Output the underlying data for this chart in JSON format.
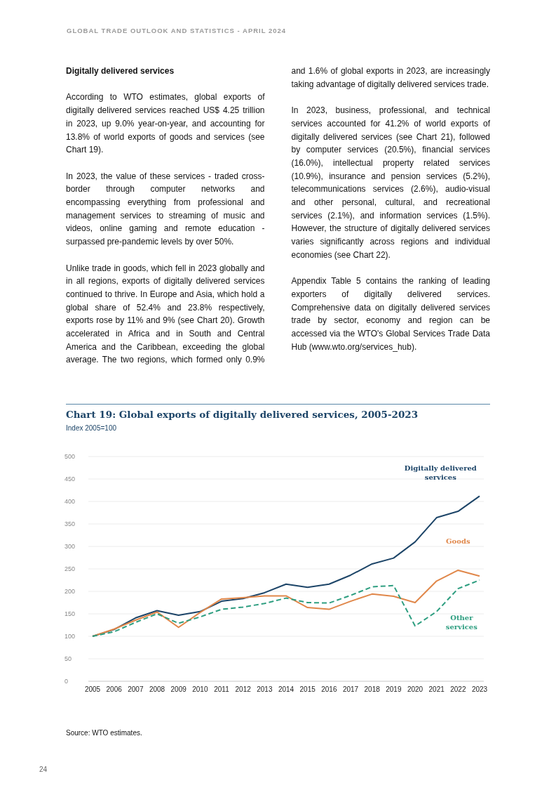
{
  "chart_data": {
    "type": "line",
    "title": "Chart 19: Global exports of digitally delivered services, 2005-2023",
    "subtitle": "Index 2005=100",
    "categories": [
      "2005",
      "2006",
      "2007",
      "2008",
      "2009",
      "2010",
      "2011",
      "2012",
      "2013",
      "2014",
      "2015",
      "2016",
      "2017",
      "2018",
      "2019",
      "2020",
      "2021",
      "2022",
      "2023"
    ],
    "series": [
      {
        "name": "Digitally delivered services",
        "color": "#1d4568",
        "line_style": "solid",
        "values": [
          100,
          115,
          141,
          157,
          147,
          155,
          178,
          184,
          197,
          216,
          209,
          216,
          236,
          261,
          274,
          310,
          364,
          378,
          412
        ]
      },
      {
        "name": "Goods",
        "color": "#e0874a",
        "line_style": "solid",
        "values": [
          100,
          116,
          136,
          154,
          120,
          153,
          183,
          186,
          190,
          190,
          164,
          160,
          178,
          194,
          189,
          175,
          223,
          247,
          234
        ]
      },
      {
        "name": "Other services",
        "color": "#2e9e80",
        "line_style": "dashed",
        "values": [
          100,
          110,
          131,
          150,
          129,
          143,
          160,
          165,
          173,
          185,
          175,
          174,
          191,
          210,
          213,
          123,
          155,
          206,
          225
        ]
      }
    ],
    "ylim": [
      0,
      500
    ],
    "yticks": [
      0,
      50,
      100,
      150,
      200,
      250,
      300,
      350,
      400,
      450,
      500
    ],
    "grid": "y",
    "marker": "none",
    "annotations": [
      "GLOBAL TRADE OUTLOOK AND STATISTICS - APRIL 2024",
      "Digitally delivered services",
      "According to WTO estimates, global exports of digitally delivered services reached US$ 4.25 trillion in 2023, up 9.0% year-on-year, and accounting for 13.8% of world exports of goods and services (see Chart 19).",
      "In 2023, the value of these services - traded cross-border through computer networks and encompassing everything from professional and management services to streaming of music and videos, online gaming and remote education - surpassed pre-pandemic levels by over 50%.",
      "Unlike trade in goods, which fell in 2023 globally and in all regions, exports of digitally delivered services continued to thrive. In Europe and Asia, which hold a global share of 52.4% and 23.8% respectively, exports rose by 11% and 9% (see Chart 20). Growth accelerated in Africa and in South and Central America and the Caribbean, exceeding the global average. The two regions, which formed only 0.9% and 1.6% of global exports in 2023, are increasingly taking advantage of digitally delivered services trade.",
      "In 2023, business, professional, and technical services accounted for 41.2% of world exports of digitally delivered services (see Chart 21), followed by computer services (20.5%), financial services (16.0%), intellectual property related services (10.9%), insurance and pension services (5.2%), telecommunications services (2.6%), audio-visual and other personal, cultural, and recreational services (2.1%), and information services (1.5%). However, the structure of digitally delivered services varies significantly across regions and individual economies (see Chart 22).",
      "Appendix Table 5 contains the ranking of leading exporters of digitally delivered services. Comprehensive data on digitally delivered services trade by sector, economy and region can be accessed via the WTO's Global Services Trade Data Hub (www.wto.org/services_hub).",
      "Source: WTO estimates.",
      "24"
    ]
  }
}
